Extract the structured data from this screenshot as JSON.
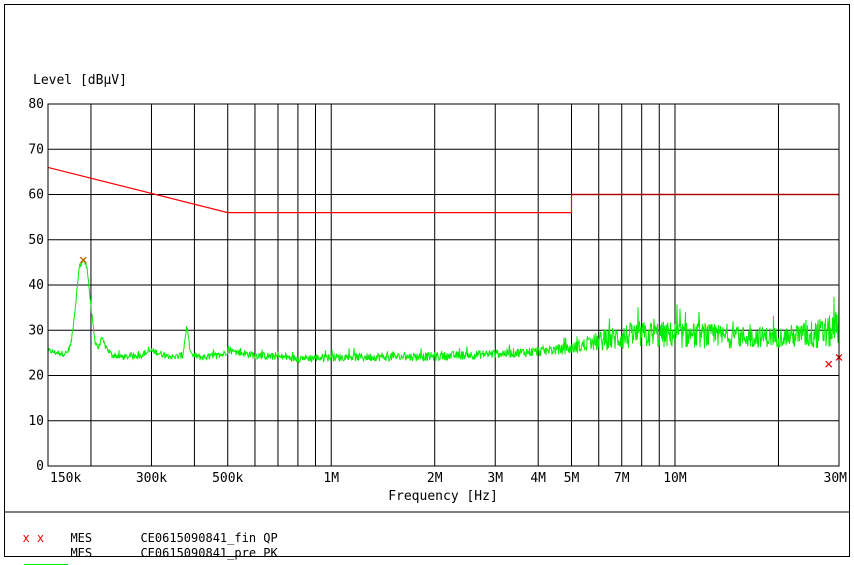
{
  "chart_data": {
    "type": "line",
    "ylabel": "Level [dBµV]",
    "xlabel": "Frequency [Hz]",
    "x_scale": "log",
    "xlim": [
      150000,
      30000000
    ],
    "ylim": [
      0,
      80
    ],
    "y_ticks": [
      0,
      10,
      20,
      30,
      40,
      50,
      60,
      70,
      80
    ],
    "x_tick_labels": [
      {
        "label": "150k",
        "value": 150000
      },
      {
        "label": "300k",
        "value": 300000
      },
      {
        "label": "500k",
        "value": 500000
      },
      {
        "label": "1M",
        "value": 1000000
      },
      {
        "label": "2M",
        "value": 2000000
      },
      {
        "label": "3M",
        "value": 3000000
      },
      {
        "label": "4M",
        "value": 4000000
      },
      {
        "label": "5M",
        "value": 5000000
      },
      {
        "label": "7M",
        "value": 7000000
      },
      {
        "label": "10M",
        "value": 10000000
      },
      {
        "label": "30M",
        "value": 30000000
      }
    ],
    "x_gridlines": [
      150000,
      200000,
      300000,
      400000,
      500000,
      600000,
      700000,
      800000,
      900000,
      1000000,
      2000000,
      3000000,
      4000000,
      5000000,
      6000000,
      7000000,
      8000000,
      9000000,
      10000000,
      20000000,
      30000000
    ],
    "y_gridlines": [
      10,
      20,
      30,
      40,
      50,
      60,
      70,
      80
    ],
    "limit_lines": [
      {
        "color": "#ff0000",
        "points": [
          [
            150000,
            66
          ],
          [
            500000,
            56
          ],
          [
            5000000,
            56
          ],
          [
            5000000,
            60
          ],
          [
            30000000,
            60
          ]
        ]
      },
      {
        "color": "#a00000",
        "points": [
          [
            5000000,
            60
          ],
          [
            30000000,
            60
          ]
        ]
      }
    ],
    "series": [
      {
        "name": "MES CE0615090841_pre PK",
        "color": "#00ee00",
        "control_points": [
          [
            150000,
            25.5
          ],
          [
            160000,
            25
          ],
          [
            170000,
            24.8
          ],
          [
            175000,
            27
          ],
          [
            180000,
            35
          ],
          [
            185000,
            44
          ],
          [
            190000,
            45.5
          ],
          [
            195000,
            44
          ],
          [
            200000,
            35
          ],
          [
            205000,
            28
          ],
          [
            210000,
            26
          ],
          [
            215000,
            28
          ],
          [
            220000,
            26.5
          ],
          [
            230000,
            24.5
          ],
          [
            250000,
            24
          ],
          [
            280000,
            24.5
          ],
          [
            300000,
            25.5
          ],
          [
            330000,
            24.5
          ],
          [
            350000,
            24
          ],
          [
            370000,
            24.5
          ],
          [
            380000,
            31
          ],
          [
            390000,
            24.5
          ],
          [
            420000,
            24
          ],
          [
            480000,
            24.5
          ],
          [
            500000,
            25.5
          ],
          [
            600000,
            24.5
          ],
          [
            800000,
            23.8
          ],
          [
            1000000,
            24
          ],
          [
            2000000,
            24.2
          ],
          [
            3000000,
            24.8
          ],
          [
            4000000,
            25.3
          ],
          [
            5000000,
            26
          ],
          [
            6000000,
            27.5
          ],
          [
            7000000,
            28.5
          ],
          [
            8000000,
            29
          ],
          [
            10000000,
            29
          ],
          [
            15000000,
            28.5
          ],
          [
            20000000,
            28.5
          ],
          [
            25000000,
            29
          ],
          [
            28000000,
            29.5
          ],
          [
            30000000,
            31
          ]
        ],
        "noise_amplitude": [
          [
            150000,
            0.6
          ],
          [
            1000000,
            0.9
          ],
          [
            3000000,
            1.0
          ],
          [
            5000000,
            1.2
          ],
          [
            7000000,
            3.0
          ],
          [
            10000000,
            3.0
          ],
          [
            20000000,
            2.2
          ],
          [
            30000000,
            4.0
          ]
        ]
      }
    ],
    "qp_markers": [
      {
        "x": 190000,
        "y": 45.5,
        "color": "#c06000"
      },
      {
        "x": 28000000,
        "y": 22.5,
        "color": "#ff0000"
      },
      {
        "x": 30000000,
        "y": 24,
        "color": "#ff0000"
      }
    ]
  },
  "legend": [
    {
      "symbol": "x x",
      "symbol_color": "#ff0000",
      "name": "MES",
      "label": "CE0615090841_fin QP"
    },
    {
      "symbol": "line",
      "symbol_color": "#00ee00",
      "name": "MES",
      "label": "CE0615090841_pre PK"
    }
  ]
}
